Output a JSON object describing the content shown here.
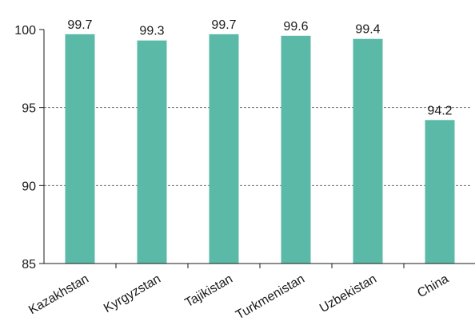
{
  "chart_data": {
    "type": "bar",
    "title": "",
    "xlabel": "",
    "ylabel": "",
    "categories": [
      "Kazakhstan",
      "Kyrgyzstan",
      "Tajikistan",
      "Turkmenistan",
      "Uzbekistan",
      "China"
    ],
    "values": [
      99.7,
      99.3,
      99.7,
      99.6,
      99.4,
      94.2
    ],
    "value_labels": [
      "99.7",
      "99.3",
      "99.7",
      "99.6",
      "99.4",
      "94.2"
    ],
    "ylim": [
      85,
      100
    ],
    "yticks": [
      85,
      90,
      95,
      100
    ],
    "ytick_labels": [
      "85",
      "90",
      "95",
      "100"
    ],
    "grid": "dashed horizontal at 90 and 95",
    "legend": "none",
    "bar_color": "#5bbaa7",
    "grid_color": "#707070",
    "axis_color": "#1a1a1a"
  }
}
